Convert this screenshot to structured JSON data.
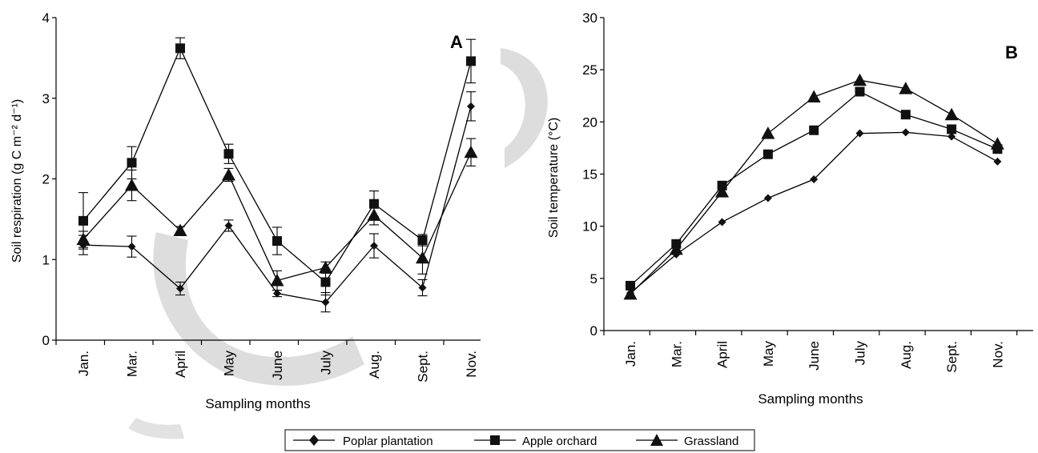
{
  "legend": {
    "placement": "bottom-center",
    "entries": [
      {
        "label": "Poplar plantation",
        "marker": "diamond"
      },
      {
        "label": "Apple orchard",
        "marker": "square"
      },
      {
        "label": "Grassland",
        "marker": "triangle"
      }
    ]
  },
  "chart_data": [
    {
      "type": "line",
      "panel_label": "A",
      "xlabel": "Sampling months",
      "ylabel": "Soil respiration (g C m⁻² d⁻¹)",
      "categories": [
        "Jan.",
        "Mar.",
        "April",
        "May",
        "June",
        "July",
        "Aug.",
        "Sept.",
        "Nov."
      ],
      "ylim": [
        0,
        4
      ],
      "yticks": [
        0,
        1,
        2,
        3,
        4
      ],
      "grid": false,
      "series": [
        {
          "name": "Poplar plantation",
          "marker": "diamond",
          "values": [
            1.18,
            1.16,
            0.64,
            1.42,
            0.58,
            0.47,
            1.17,
            0.65,
            2.9
          ],
          "errors": [
            0.12,
            0.13,
            0.08,
            0.07,
            0.04,
            0.12,
            0.15,
            0.1,
            0.18
          ]
        },
        {
          "name": "Apple orchard",
          "marker": "square",
          "values": [
            1.48,
            2.2,
            3.62,
            2.31,
            1.23,
            0.72,
            1.69,
            1.24,
            3.46
          ],
          "errors": [
            0.35,
            0.2,
            0.13,
            0.12,
            0.17,
            0.16,
            0.16,
            0.07,
            0.27
          ]
        },
        {
          "name": "Grassland",
          "marker": "triangle",
          "values": [
            1.25,
            1.92,
            1.36,
            2.05,
            0.74,
            0.9,
            1.55,
            1.02,
            2.33
          ],
          "errors": [
            0.1,
            0.19,
            0.05,
            0.08,
            0.12,
            0.07,
            0.12,
            0.2,
            0.17
          ]
        }
      ]
    },
    {
      "type": "line",
      "panel_label": "B",
      "xlabel": "Sampling months",
      "ylabel": "Soil temperature (°C)",
      "categories": [
        "Jan.",
        "Mar.",
        "April",
        "May",
        "June",
        "July",
        "Aug.",
        "Sept.",
        "Nov."
      ],
      "ylim": [
        0,
        30
      ],
      "yticks": [
        0,
        5,
        10,
        15,
        20,
        25,
        30
      ],
      "grid": false,
      "series": [
        {
          "name": "Poplar plantation",
          "marker": "diamond",
          "values": [
            3.6,
            7.3,
            10.4,
            12.7,
            14.5,
            18.9,
            19.0,
            18.6,
            16.2
          ]
        },
        {
          "name": "Apple orchard",
          "marker": "square",
          "values": [
            4.3,
            8.3,
            13.9,
            16.9,
            19.2,
            22.9,
            20.7,
            19.3,
            17.4
          ]
        },
        {
          "name": "Grassland",
          "marker": "triangle",
          "values": [
            3.5,
            7.8,
            13.3,
            18.9,
            22.4,
            24.0,
            23.2,
            20.7,
            17.9
          ]
        }
      ]
    }
  ]
}
